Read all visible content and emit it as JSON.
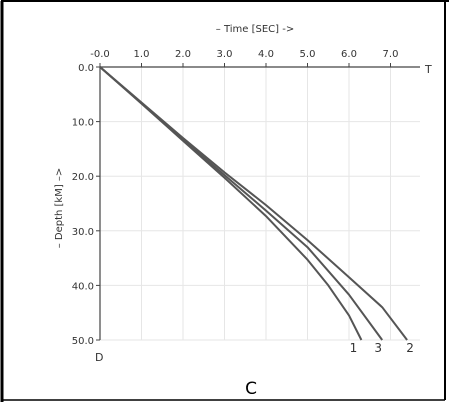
{
  "chart_data": {
    "type": "line",
    "x_axis_title": "– Time [SEC] ->",
    "y_axis_title": "– Depth [kM] –>",
    "x_tick_labels": [
      "-0.0",
      "1.0",
      "2.0",
      "3.0",
      "4.0",
      "5.0",
      "6.0",
      "7.0"
    ],
    "x_ticks": [
      0,
      1,
      2,
      3,
      4,
      5,
      6,
      7
    ],
    "y_tick_labels": [
      "0.0",
      "10.0",
      "20.0",
      "30.0",
      "40.0",
      "50.0"
    ],
    "y_ticks": [
      0,
      10,
      20,
      30,
      40,
      50
    ],
    "x_end_label": "T",
    "y_end_label": "D",
    "xlim": [
      0,
      7.8
    ],
    "ylim": [
      0,
      50
    ],
    "x_axis_position": "top",
    "y_axis_inverted": true,
    "grid": true,
    "line_color": "#555555",
    "series": [
      {
        "name": "1",
        "x": [
          0,
          1,
          2,
          3,
          4,
          5,
          5.5,
          6.0,
          6.3
        ],
        "y": [
          0,
          6.7,
          13.5,
          20.3,
          27.3,
          35.3,
          40.0,
          45.5,
          50.0
        ]
      },
      {
        "name": "3",
        "x": [
          0,
          1,
          2,
          3,
          4,
          5,
          6.0,
          6.8
        ],
        "y": [
          0,
          6.6,
          13.3,
          19.8,
          26.3,
          33.0,
          41.7,
          50.0
        ]
      },
      {
        "name": "2",
        "x": [
          0,
          1,
          2,
          3,
          4,
          5,
          6.0,
          6.8,
          7.4
        ],
        "y": [
          0,
          6.5,
          13.0,
          19.3,
          25.3,
          31.7,
          38.5,
          44.0,
          50.0
        ]
      }
    ]
  },
  "caption": "C"
}
